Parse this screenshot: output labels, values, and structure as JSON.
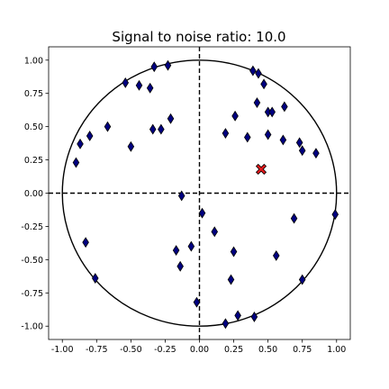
{
  "chart_data": {
    "type": "scatter",
    "title": "Signal to noise ratio: 10.0",
    "xlabel": "",
    "ylabel": "",
    "xlim": [
      -1.1,
      1.1
    ],
    "ylim": [
      -1.1,
      1.1
    ],
    "x_ticks": [
      "-1.00",
      "-0.75",
      "-0.50",
      "-0.25",
      "0.00",
      "0.25",
      "0.50",
      "0.75",
      "1.00"
    ],
    "y_ticks": [
      "1.00",
      "0.75",
      "0.50",
      "0.25",
      "0.00",
      "-0.25",
      "-0.50",
      "-0.75",
      "-1.00"
    ],
    "x_tick_values": [
      -1.0,
      -0.75,
      -0.5,
      -0.25,
      0.0,
      0.25,
      0.5,
      0.75,
      1.0
    ],
    "y_tick_values": [
      1.0,
      0.75,
      0.5,
      0.25,
      0.0,
      -0.25,
      -0.5,
      -0.75,
      -1.0
    ],
    "grid": false,
    "unit_circle_radius": 1.0,
    "reference_lines": {
      "x": 0,
      "y": 0,
      "style": "dashed"
    },
    "points": [
      {
        "x": -0.33,
        "y": 0.95
      },
      {
        "x": -0.23,
        "y": 0.96
      },
      {
        "x": -0.54,
        "y": 0.83
      },
      {
        "x": -0.44,
        "y": 0.81
      },
      {
        "x": -0.36,
        "y": 0.79
      },
      {
        "x": -0.67,
        "y": 0.5
      },
      {
        "x": -0.34,
        "y": 0.48
      },
      {
        "x": -0.28,
        "y": 0.48
      },
      {
        "x": -0.21,
        "y": 0.56
      },
      {
        "x": -0.5,
        "y": 0.35
      },
      {
        "x": -0.8,
        "y": 0.43
      },
      {
        "x": -0.87,
        "y": 0.37
      },
      {
        "x": -0.9,
        "y": 0.23
      },
      {
        "x": -0.83,
        "y": -0.37
      },
      {
        "x": -0.76,
        "y": -0.64
      },
      {
        "x": -0.13,
        "y": -0.02
      },
      {
        "x": -0.17,
        "y": -0.43
      },
      {
        "x": -0.14,
        "y": -0.55
      },
      {
        "x": -0.06,
        "y": -0.4
      },
      {
        "x": -0.02,
        "y": -0.82
      },
      {
        "x": 0.02,
        "y": -0.15
      },
      {
        "x": 0.11,
        "y": -0.29
      },
      {
        "x": 0.19,
        "y": -0.98
      },
      {
        "x": 0.23,
        "y": -0.65
      },
      {
        "x": 0.25,
        "y": -0.44
      },
      {
        "x": 0.28,
        "y": -0.92
      },
      {
        "x": 0.4,
        "y": -0.93
      },
      {
        "x": 0.56,
        "y": -0.47
      },
      {
        "x": 0.69,
        "y": -0.19
      },
      {
        "x": 0.75,
        "y": -0.65
      },
      {
        "x": 0.99,
        "y": -0.16
      },
      {
        "x": 0.39,
        "y": 0.92
      },
      {
        "x": 0.43,
        "y": 0.9
      },
      {
        "x": 0.47,
        "y": 0.82
      },
      {
        "x": 0.42,
        "y": 0.68
      },
      {
        "x": 0.5,
        "y": 0.61
      },
      {
        "x": 0.53,
        "y": 0.61
      },
      {
        "x": 0.62,
        "y": 0.65
      },
      {
        "x": 0.26,
        "y": 0.58
      },
      {
        "x": 0.19,
        "y": 0.45
      },
      {
        "x": 0.35,
        "y": 0.42
      },
      {
        "x": 0.5,
        "y": 0.44
      },
      {
        "x": 0.61,
        "y": 0.4
      },
      {
        "x": 0.73,
        "y": 0.38
      },
      {
        "x": 0.75,
        "y": 0.32
      },
      {
        "x": 0.85,
        "y": 0.3
      }
    ],
    "highlight_point": {
      "x": 0.45,
      "y": 0.18
    },
    "colors": {
      "points_fill": "#000080",
      "points_edge": "#000000",
      "highlight_fill": "#e41a1c",
      "highlight_edge": "#000000",
      "circle": "#000000",
      "axes": "#000000"
    }
  }
}
